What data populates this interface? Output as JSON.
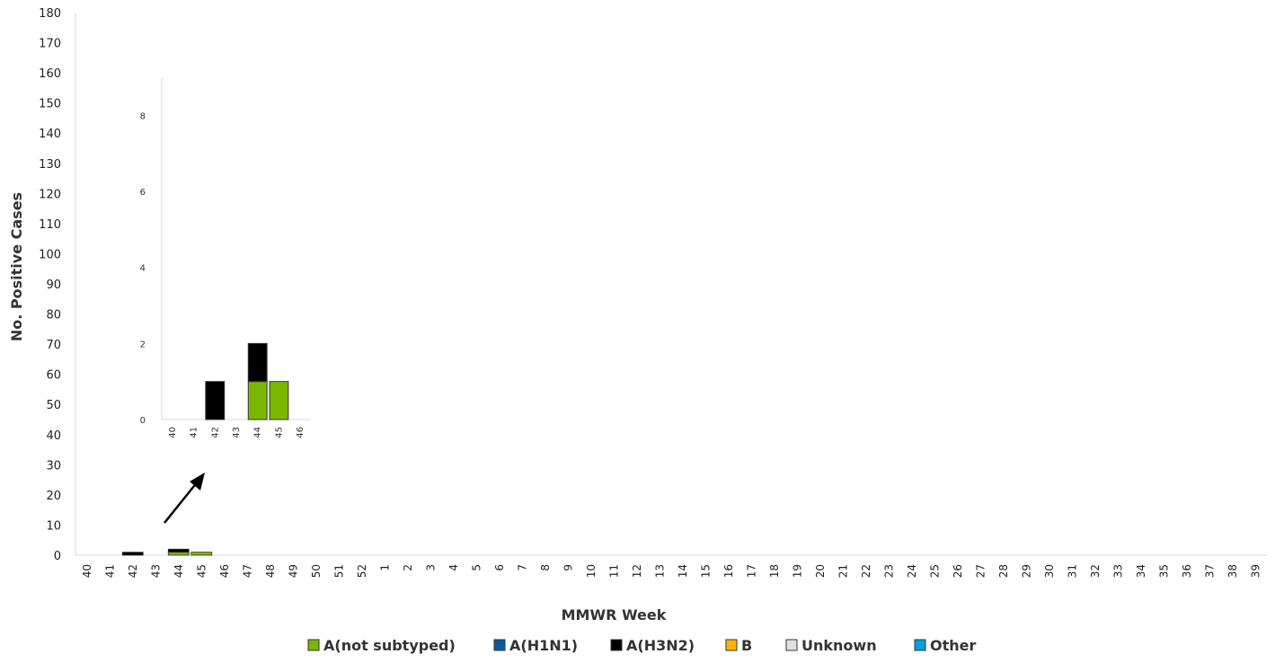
{
  "chart_data": {
    "type": "bar",
    "stacked": true,
    "xlabel": "MMWR Week",
    "ylabel": "No. Positive Cases",
    "ylim": [
      0,
      180
    ],
    "yticks": [
      0,
      10,
      20,
      30,
      40,
      50,
      60,
      70,
      80,
      90,
      100,
      110,
      120,
      130,
      140,
      150,
      160,
      170,
      180
    ],
    "categories": [
      "40",
      "41",
      "42",
      "43",
      "44",
      "45",
      "46",
      "47",
      "48",
      "49",
      "50",
      "51",
      "52",
      "1",
      "2",
      "3",
      "4",
      "5",
      "6",
      "7",
      "8",
      "9",
      "10",
      "11",
      "12",
      "13",
      "14",
      "15",
      "16",
      "17",
      "18",
      "19",
      "20",
      "21",
      "22",
      "23",
      "24",
      "25",
      "26",
      "27",
      "28",
      "29",
      "30",
      "31",
      "32",
      "33",
      "34",
      "35",
      "36",
      "37",
      "38",
      "39"
    ],
    "series": [
      {
        "name": "A(not subtyped)",
        "color": "#7ab800",
        "values": [
          0,
          0,
          0,
          0,
          1,
          1,
          0,
          0,
          0,
          0,
          0,
          0,
          0,
          0,
          0,
          0,
          0,
          0,
          0,
          0,
          0,
          0,
          0,
          0,
          0,
          0,
          0,
          0,
          0,
          0,
          0,
          0,
          0,
          0,
          0,
          0,
          0,
          0,
          0,
          0,
          0,
          0,
          0,
          0,
          0,
          0,
          0,
          0,
          0,
          0,
          0,
          0
        ]
      },
      {
        "name": "A(H1N1)",
        "color": "#0d5aa0",
        "values": [
          0,
          0,
          0,
          0,
          0,
          0,
          0,
          0,
          0,
          0,
          0,
          0,
          0,
          0,
          0,
          0,
          0,
          0,
          0,
          0,
          0,
          0,
          0,
          0,
          0,
          0,
          0,
          0,
          0,
          0,
          0,
          0,
          0,
          0,
          0,
          0,
          0,
          0,
          0,
          0,
          0,
          0,
          0,
          0,
          0,
          0,
          0,
          0,
          0,
          0,
          0,
          0
        ]
      },
      {
        "name": "A(H3N2)",
        "color": "#000000",
        "values": [
          0,
          0,
          1,
          0,
          1,
          0,
          0,
          0,
          0,
          0,
          0,
          0,
          0,
          0,
          0,
          0,
          0,
          0,
          0,
          0,
          0,
          0,
          0,
          0,
          0,
          0,
          0,
          0,
          0,
          0,
          0,
          0,
          0,
          0,
          0,
          0,
          0,
          0,
          0,
          0,
          0,
          0,
          0,
          0,
          0,
          0,
          0,
          0,
          0,
          0,
          0,
          0
        ]
      },
      {
        "name": "B",
        "color": "#ffb400",
        "values": [
          0,
          0,
          0,
          0,
          0,
          0,
          0,
          0,
          0,
          0,
          0,
          0,
          0,
          0,
          0,
          0,
          0,
          0,
          0,
          0,
          0,
          0,
          0,
          0,
          0,
          0,
          0,
          0,
          0,
          0,
          0,
          0,
          0,
          0,
          0,
          0,
          0,
          0,
          0,
          0,
          0,
          0,
          0,
          0,
          0,
          0,
          0,
          0,
          0,
          0,
          0,
          0
        ]
      },
      {
        "name": "Unknown",
        "color": "#e0e0e0",
        "values": [
          0,
          0,
          0,
          0,
          0,
          0,
          0,
          0,
          0,
          0,
          0,
          0,
          0,
          0,
          0,
          0,
          0,
          0,
          0,
          0,
          0,
          0,
          0,
          0,
          0,
          0,
          0,
          0,
          0,
          0,
          0,
          0,
          0,
          0,
          0,
          0,
          0,
          0,
          0,
          0,
          0,
          0,
          0,
          0,
          0,
          0,
          0,
          0,
          0,
          0,
          0,
          0
        ]
      },
      {
        "name": "Other",
        "color": "#00a3e0",
        "values": [
          0,
          0,
          0,
          0,
          0,
          0,
          0,
          0,
          0,
          0,
          0,
          0,
          0,
          0,
          0,
          0,
          0,
          0,
          0,
          0,
          0,
          0,
          0,
          0,
          0,
          0,
          0,
          0,
          0,
          0,
          0,
          0,
          0,
          0,
          0,
          0,
          0,
          0,
          0,
          0,
          0,
          0,
          0,
          0,
          0,
          0,
          0,
          0,
          0,
          0,
          0,
          0
        ]
      }
    ],
    "legend_position": "bottom",
    "grid": false,
    "inset": {
      "type": "bar",
      "stacked": true,
      "categories": [
        "40",
        "41",
        "42",
        "43",
        "44",
        "45",
        "46"
      ],
      "ylim": [
        0,
        9
      ],
      "yticks": [
        0,
        2,
        4,
        6,
        8
      ],
      "series": [
        {
          "name": "A(not subtyped)",
          "color": "#7ab800",
          "values": [
            0,
            0,
            0,
            0,
            1,
            1,
            0
          ]
        },
        {
          "name": "A(H3N2)",
          "color": "#000000",
          "values": [
            0,
            0,
            1,
            0,
            1,
            0,
            0
          ]
        }
      ]
    }
  }
}
